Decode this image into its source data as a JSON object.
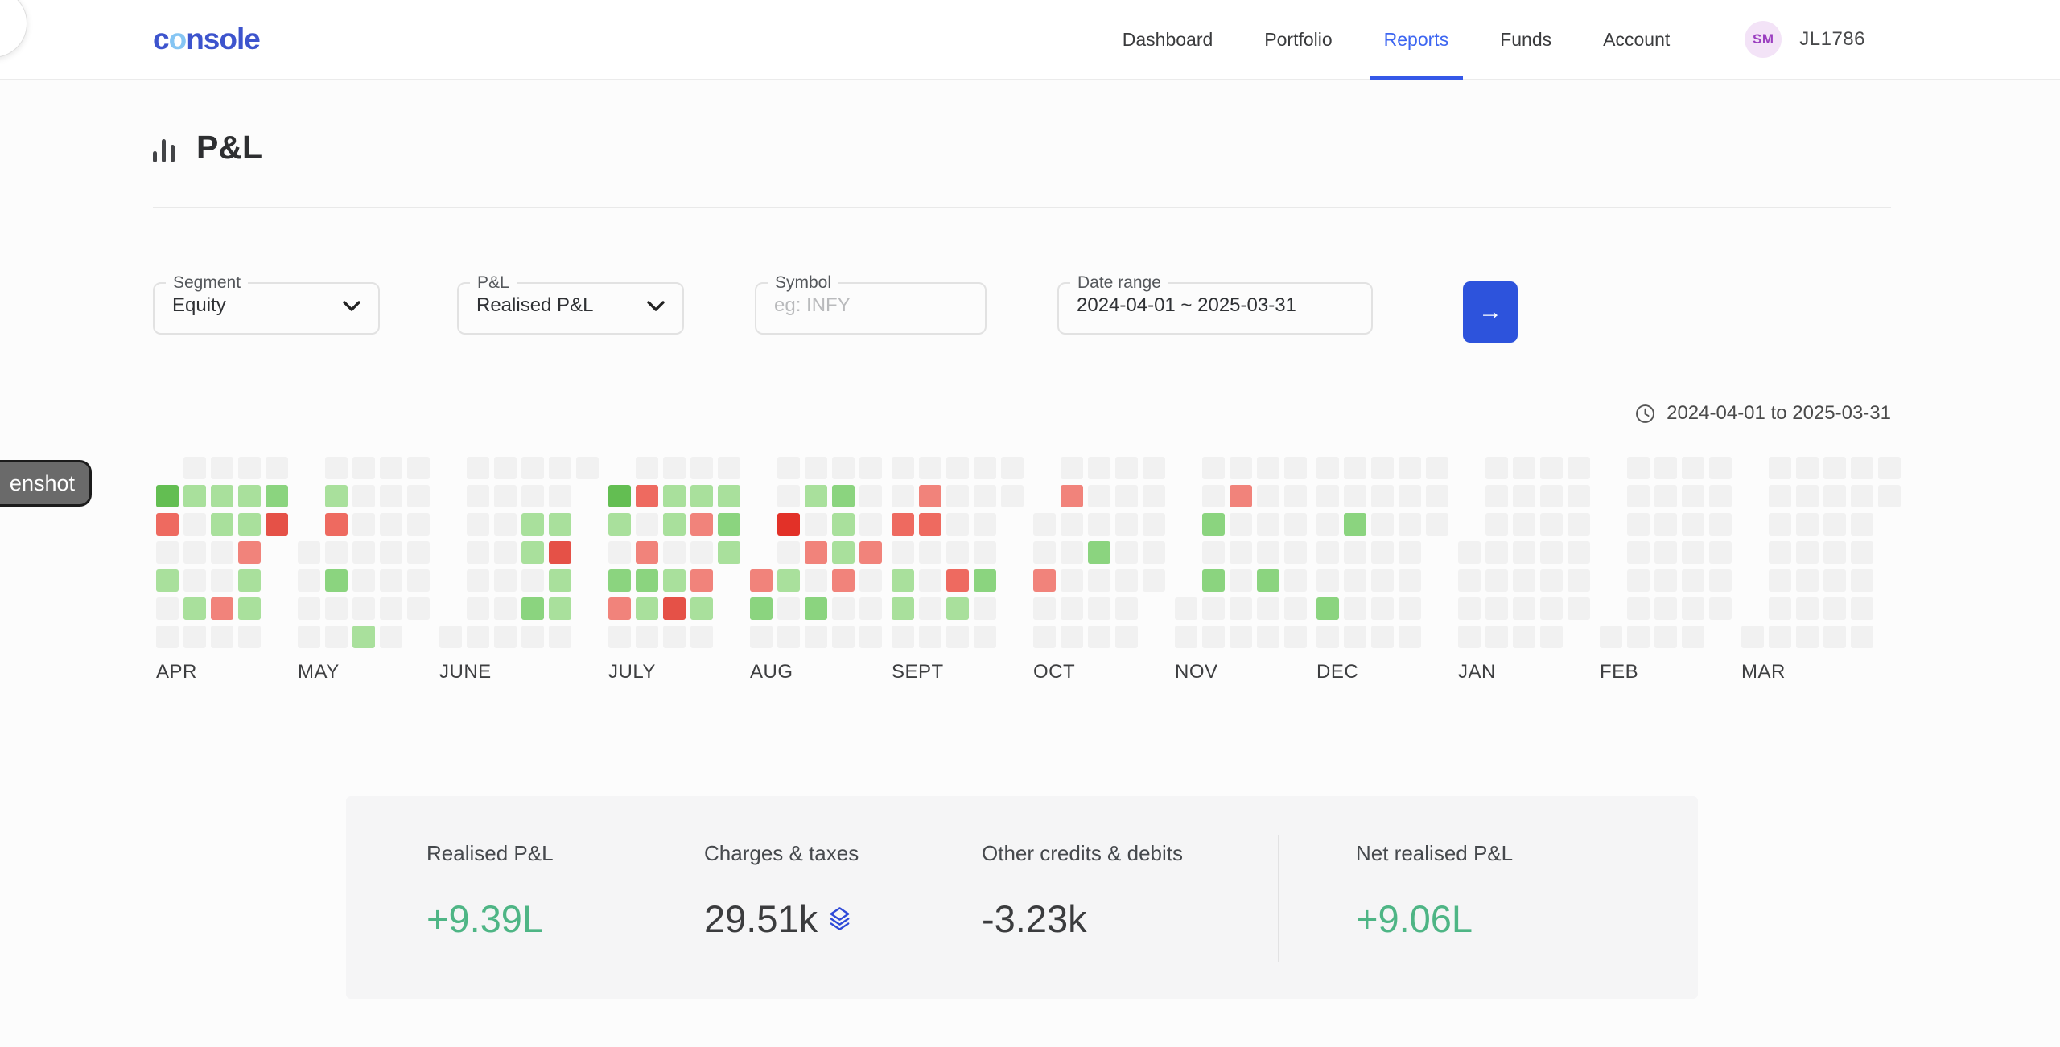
{
  "header": {
    "logo": {
      "c": "c",
      "o": "o",
      "rest": "nsole"
    },
    "nav": [
      {
        "label": "Dashboard",
        "active": false
      },
      {
        "label": "Portfolio",
        "active": false
      },
      {
        "label": "Reports",
        "active": true
      },
      {
        "label": "Funds",
        "active": false
      },
      {
        "label": "Account",
        "active": false
      }
    ],
    "user": {
      "initials": "SM",
      "id": "JL1786"
    }
  },
  "page": {
    "title": "P&L"
  },
  "filters": {
    "segment": {
      "label": "Segment",
      "value": "Equity"
    },
    "pnl": {
      "label": "P&L",
      "value": "Realised P&L"
    },
    "symbol": {
      "label": "Symbol",
      "placeholder": "eg: INFY"
    },
    "date_range": {
      "label": "Date range",
      "value": "2024-04-01 ~ 2025-03-31"
    },
    "submit_arrow": "→"
  },
  "heatmap": {
    "period_label": "2024-04-01 to 2025-03-31",
    "cell_colors": {
      "gy": "#f1f1f1",
      "g1": "#a9e09c",
      "g2": "#8bd47f",
      "g3": "#63be52",
      "r1": "#f1837b",
      "r2": "#ee6a60",
      "r3": "#e55147",
      "r4": "#e23128"
    },
    "months": [
      {
        "label": "APR",
        "weeks": [
          [
            null,
            "g3",
            "r2",
            "gy",
            "g1",
            "gy",
            "gy"
          ],
          [
            "gy",
            "g1",
            "gy",
            "gy",
            "gy",
            "g1",
            "gy"
          ],
          [
            "gy",
            "g1",
            "g1",
            "gy",
            "gy",
            "r1",
            "gy"
          ],
          [
            "gy",
            "g1",
            "g1",
            "r1",
            "g1",
            "g1",
            "gy"
          ],
          [
            "gy",
            "g2",
            "r3",
            null,
            null,
            null,
            null
          ]
        ]
      },
      {
        "label": "MAY",
        "weeks": [
          [
            null,
            null,
            null,
            "gy",
            "gy",
            "gy",
            "gy"
          ],
          [
            "gy",
            "g1",
            "r2",
            "gy",
            "g2",
            "gy",
            "gy"
          ],
          [
            "gy",
            "gy",
            "gy",
            "gy",
            "gy",
            "gy",
            "g1"
          ],
          [
            "gy",
            "gy",
            "gy",
            "gy",
            "gy",
            "gy",
            "gy"
          ],
          [
            "gy",
            "gy",
            "gy",
            "gy",
            "gy",
            "gy",
            null
          ]
        ]
      },
      {
        "label": "JUNE",
        "weeks": [
          [
            null,
            null,
            null,
            null,
            null,
            null,
            "gy"
          ],
          [
            "gy",
            "gy",
            "gy",
            "gy",
            "gy",
            "gy",
            "gy"
          ],
          [
            "gy",
            "gy",
            "gy",
            "gy",
            "gy",
            "gy",
            "gy"
          ],
          [
            "gy",
            "gy",
            "g1",
            "g1",
            "gy",
            "g2",
            "gy"
          ],
          [
            "gy",
            "gy",
            "g1",
            "r3",
            "g1",
            "g1",
            "gy"
          ],
          [
            "gy",
            null,
            null,
            null,
            null,
            null,
            null
          ]
        ]
      },
      {
        "label": "JULY",
        "weeks": [
          [
            null,
            "g3",
            "g1",
            "gy",
            "g2",
            "r1",
            "gy"
          ],
          [
            "gy",
            "r2",
            "gy",
            "r1",
            "g2",
            "g1",
            "gy"
          ],
          [
            "gy",
            "g1",
            "g1",
            "gy",
            "g1",
            "r3",
            "gy"
          ],
          [
            "gy",
            "g1",
            "r1",
            "gy",
            "r1",
            "g1",
            "gy"
          ],
          [
            "gy",
            "g1",
            "g2",
            "g1",
            null,
            null,
            null
          ]
        ]
      },
      {
        "label": "AUG",
        "weeks": [
          [
            null,
            null,
            null,
            null,
            "r1",
            "g2",
            "gy"
          ],
          [
            "gy",
            "gy",
            "r4",
            "gy",
            "g1",
            "gy",
            "gy"
          ],
          [
            "gy",
            "g1",
            "gy",
            "r1",
            "gy",
            "g2",
            "gy"
          ],
          [
            "gy",
            "g2",
            "g1",
            "g1",
            "r1",
            "gy",
            "gy"
          ],
          [
            "gy",
            "gy",
            "gy",
            "r1",
            "gy",
            "gy",
            "gy"
          ]
        ]
      },
      {
        "label": "SEPT",
        "weeks": [
          [
            "gy",
            "gy",
            "r2",
            "gy",
            "g1",
            "g1",
            "gy"
          ],
          [
            "gy",
            "r1",
            "r2",
            "gy",
            "gy",
            "gy",
            "gy"
          ],
          [
            "gy",
            "gy",
            "gy",
            "gy",
            "r2",
            "g1",
            "gy"
          ],
          [
            "gy",
            "gy",
            "gy",
            "gy",
            "g2",
            "gy",
            "gy"
          ],
          [
            "gy",
            "gy",
            null,
            null,
            null,
            null,
            null
          ]
        ]
      },
      {
        "label": "OCT",
        "weeks": [
          [
            null,
            null,
            "gy",
            "gy",
            "r1",
            "gy",
            "gy"
          ],
          [
            "gy",
            "r1",
            "gy",
            "gy",
            "gy",
            "gy",
            "gy"
          ],
          [
            "gy",
            "gy",
            "gy",
            "g2",
            "gy",
            "gy",
            "gy"
          ],
          [
            "gy",
            "gy",
            "gy",
            "gy",
            "gy",
            "gy",
            "gy"
          ],
          [
            "gy",
            "gy",
            "gy",
            "gy",
            "gy",
            null,
            null
          ]
        ]
      },
      {
        "label": "NOV",
        "weeks": [
          [
            null,
            null,
            null,
            null,
            null,
            "gy",
            "gy"
          ],
          [
            "gy",
            "gy",
            "g2",
            "gy",
            "g2",
            "gy",
            "gy"
          ],
          [
            "gy",
            "r1",
            "gy",
            "gy",
            "gy",
            "gy",
            "gy"
          ],
          [
            "gy",
            "gy",
            "gy",
            "gy",
            "g2",
            "gy",
            "gy"
          ],
          [
            "gy",
            "gy",
            "gy",
            "gy",
            "gy",
            "gy",
            "gy"
          ]
        ]
      },
      {
        "label": "DEC",
        "weeks": [
          [
            "gy",
            "gy",
            "gy",
            "gy",
            "gy",
            "g2",
            "gy"
          ],
          [
            "gy",
            "gy",
            "g2",
            "gy",
            "gy",
            "gy",
            "gy"
          ],
          [
            "gy",
            "gy",
            "gy",
            "gy",
            "gy",
            "gy",
            "gy"
          ],
          [
            "gy",
            "gy",
            "gy",
            "gy",
            "gy",
            "gy",
            "gy"
          ],
          [
            "gy",
            "gy",
            "gy",
            null,
            null,
            null,
            null
          ]
        ]
      },
      {
        "label": "JAN",
        "weeks": [
          [
            null,
            null,
            null,
            "gy",
            "gy",
            "gy",
            "gy"
          ],
          [
            "gy",
            "gy",
            "gy",
            "gy",
            "gy",
            "gy",
            "gy"
          ],
          [
            "gy",
            "gy",
            "gy",
            "gy",
            "gy",
            "gy",
            "gy"
          ],
          [
            "gy",
            "gy",
            "gy",
            "gy",
            "gy",
            "gy",
            "gy"
          ],
          [
            "gy",
            "gy",
            "gy",
            "gy",
            "gy",
            "gy",
            null
          ]
        ]
      },
      {
        "label": "FEB",
        "weeks": [
          [
            null,
            null,
            null,
            null,
            null,
            null,
            "gy"
          ],
          [
            "gy",
            "gy",
            "gy",
            "gy",
            "gy",
            "gy",
            "gy"
          ],
          [
            "gy",
            "gy",
            "gy",
            "gy",
            "gy",
            "gy",
            "gy"
          ],
          [
            "gy",
            "gy",
            "gy",
            "gy",
            "gy",
            "gy",
            "gy"
          ],
          [
            "gy",
            "gy",
            "gy",
            "gy",
            "gy",
            "gy",
            null
          ]
        ]
      },
      {
        "label": "MAR",
        "weeks": [
          [
            null,
            null,
            null,
            null,
            null,
            null,
            "gy"
          ],
          [
            "gy",
            "gy",
            "gy",
            "gy",
            "gy",
            "gy",
            "gy"
          ],
          [
            "gy",
            "gy",
            "gy",
            "gy",
            "gy",
            "gy",
            "gy"
          ],
          [
            "gy",
            "gy",
            "gy",
            "gy",
            "gy",
            "gy",
            "gy"
          ],
          [
            "gy",
            "gy",
            "gy",
            "gy",
            "gy",
            "gy",
            "gy"
          ],
          [
            "gy",
            "gy",
            null,
            null,
            null,
            null,
            null
          ]
        ]
      }
    ]
  },
  "summary": {
    "items": [
      {
        "label": "Realised P&L",
        "value": "+9.39L",
        "tone": "green",
        "has_layers_icon": false,
        "divider_before": false,
        "wide": false
      },
      {
        "label": "Charges & taxes",
        "value": "29.51k",
        "tone": "dark",
        "has_layers_icon": true,
        "divider_before": false,
        "wide": false
      },
      {
        "label": "Other credits & debits",
        "value": "-3.23k",
        "tone": "dark",
        "has_layers_icon": false,
        "divider_before": false,
        "wide": true
      },
      {
        "label": "Net realised P&L",
        "value": "+9.06L",
        "tone": "green",
        "has_layers_icon": false,
        "divider_before": true,
        "wide": false
      }
    ]
  },
  "tooltip": {
    "text": "enshot"
  },
  "colors": {
    "accent_blue": "#3558e8",
    "value_green": "#4eb585",
    "layers_icon_blue": "#2e49d8"
  }
}
